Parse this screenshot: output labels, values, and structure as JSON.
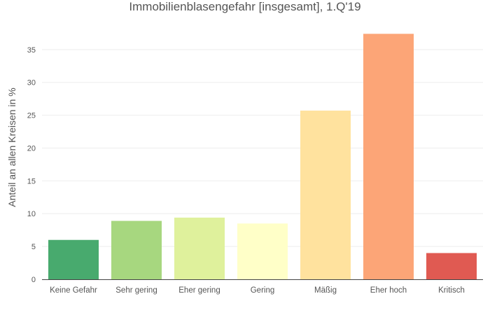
{
  "chart_data": {
    "type": "bar",
    "title": "Immobilienblasengefahr [insgesamt], 1.Q'19",
    "xlabel": "",
    "ylabel": "Anteil an allen Kreisen in %",
    "categories": [
      "Keine Gefahr",
      "Sehr gering",
      "Eher gering",
      "Gering",
      "Mäßig",
      "Eher hoch",
      "Kritisch"
    ],
    "values": [
      6.0,
      8.9,
      9.4,
      8.5,
      25.7,
      37.4,
      4.0
    ],
    "colors": [
      "#48aa6e",
      "#a7d77f",
      "#dff19c",
      "#ffffc8",
      "#ffe29e",
      "#fca577",
      "#e05a52"
    ],
    "ylim": [
      0,
      38.5
    ],
    "yticks": [
      0,
      5,
      10,
      15,
      20,
      25,
      30,
      35
    ],
    "grid": true,
    "legend": "none"
  }
}
